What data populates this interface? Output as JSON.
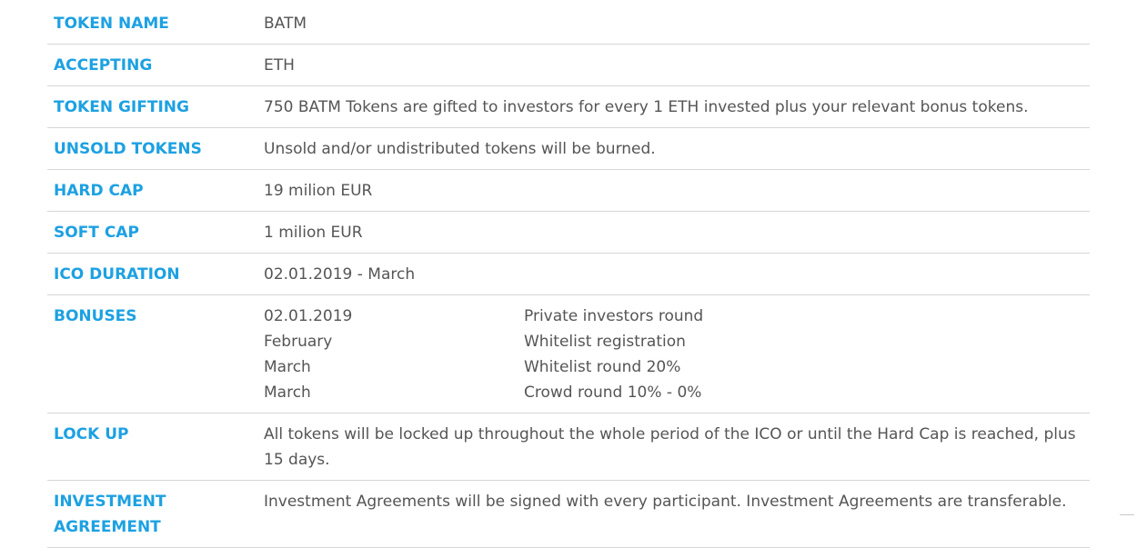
{
  "rows": [
    {
      "label": "TOKEN NAME",
      "value": "BATM"
    },
    {
      "label": "ACCEPTING",
      "value": "ETH"
    },
    {
      "label": "TOKEN GIFTING",
      "value": "750 BATM Tokens are gifted to investors for every 1 ETH invested plus your relevant bonus tokens."
    },
    {
      "label": "UNSOLD TOKENS",
      "value": "Unsold and/or undistributed tokens will be burned."
    },
    {
      "label": "HARD CAP",
      "value": "19 milion EUR"
    },
    {
      "label": "SOFT CAP",
      "value": "1 milion EUR"
    },
    {
      "label": "ICO DURATION",
      "value": "02.01.2019 - March"
    }
  ],
  "bonuses": {
    "label": "BONUSES",
    "items": [
      {
        "date": "02.01.2019",
        "description": "Private investors round"
      },
      {
        "date": "February",
        "description": "Whitelist registration"
      },
      {
        "date": "March",
        "description": "Whitelist round 20%"
      },
      {
        "date": "March",
        "description": "Crowd round 10% - 0%"
      }
    ]
  },
  "lock_up": {
    "label": "LOCK UP",
    "value": "All tokens will be locked up throughout the whole period of the ICO or until the Hard Cap is reached, plus 15 days."
  },
  "investment_agreement": {
    "label": "INVESTMENT AGREEMENT",
    "value": "Investment Agreements will be signed with every participant. Investment Agreements are transferable."
  },
  "colors": {
    "label": "#1da1e2",
    "text": "#555555",
    "divider": "#d6d6d6"
  }
}
